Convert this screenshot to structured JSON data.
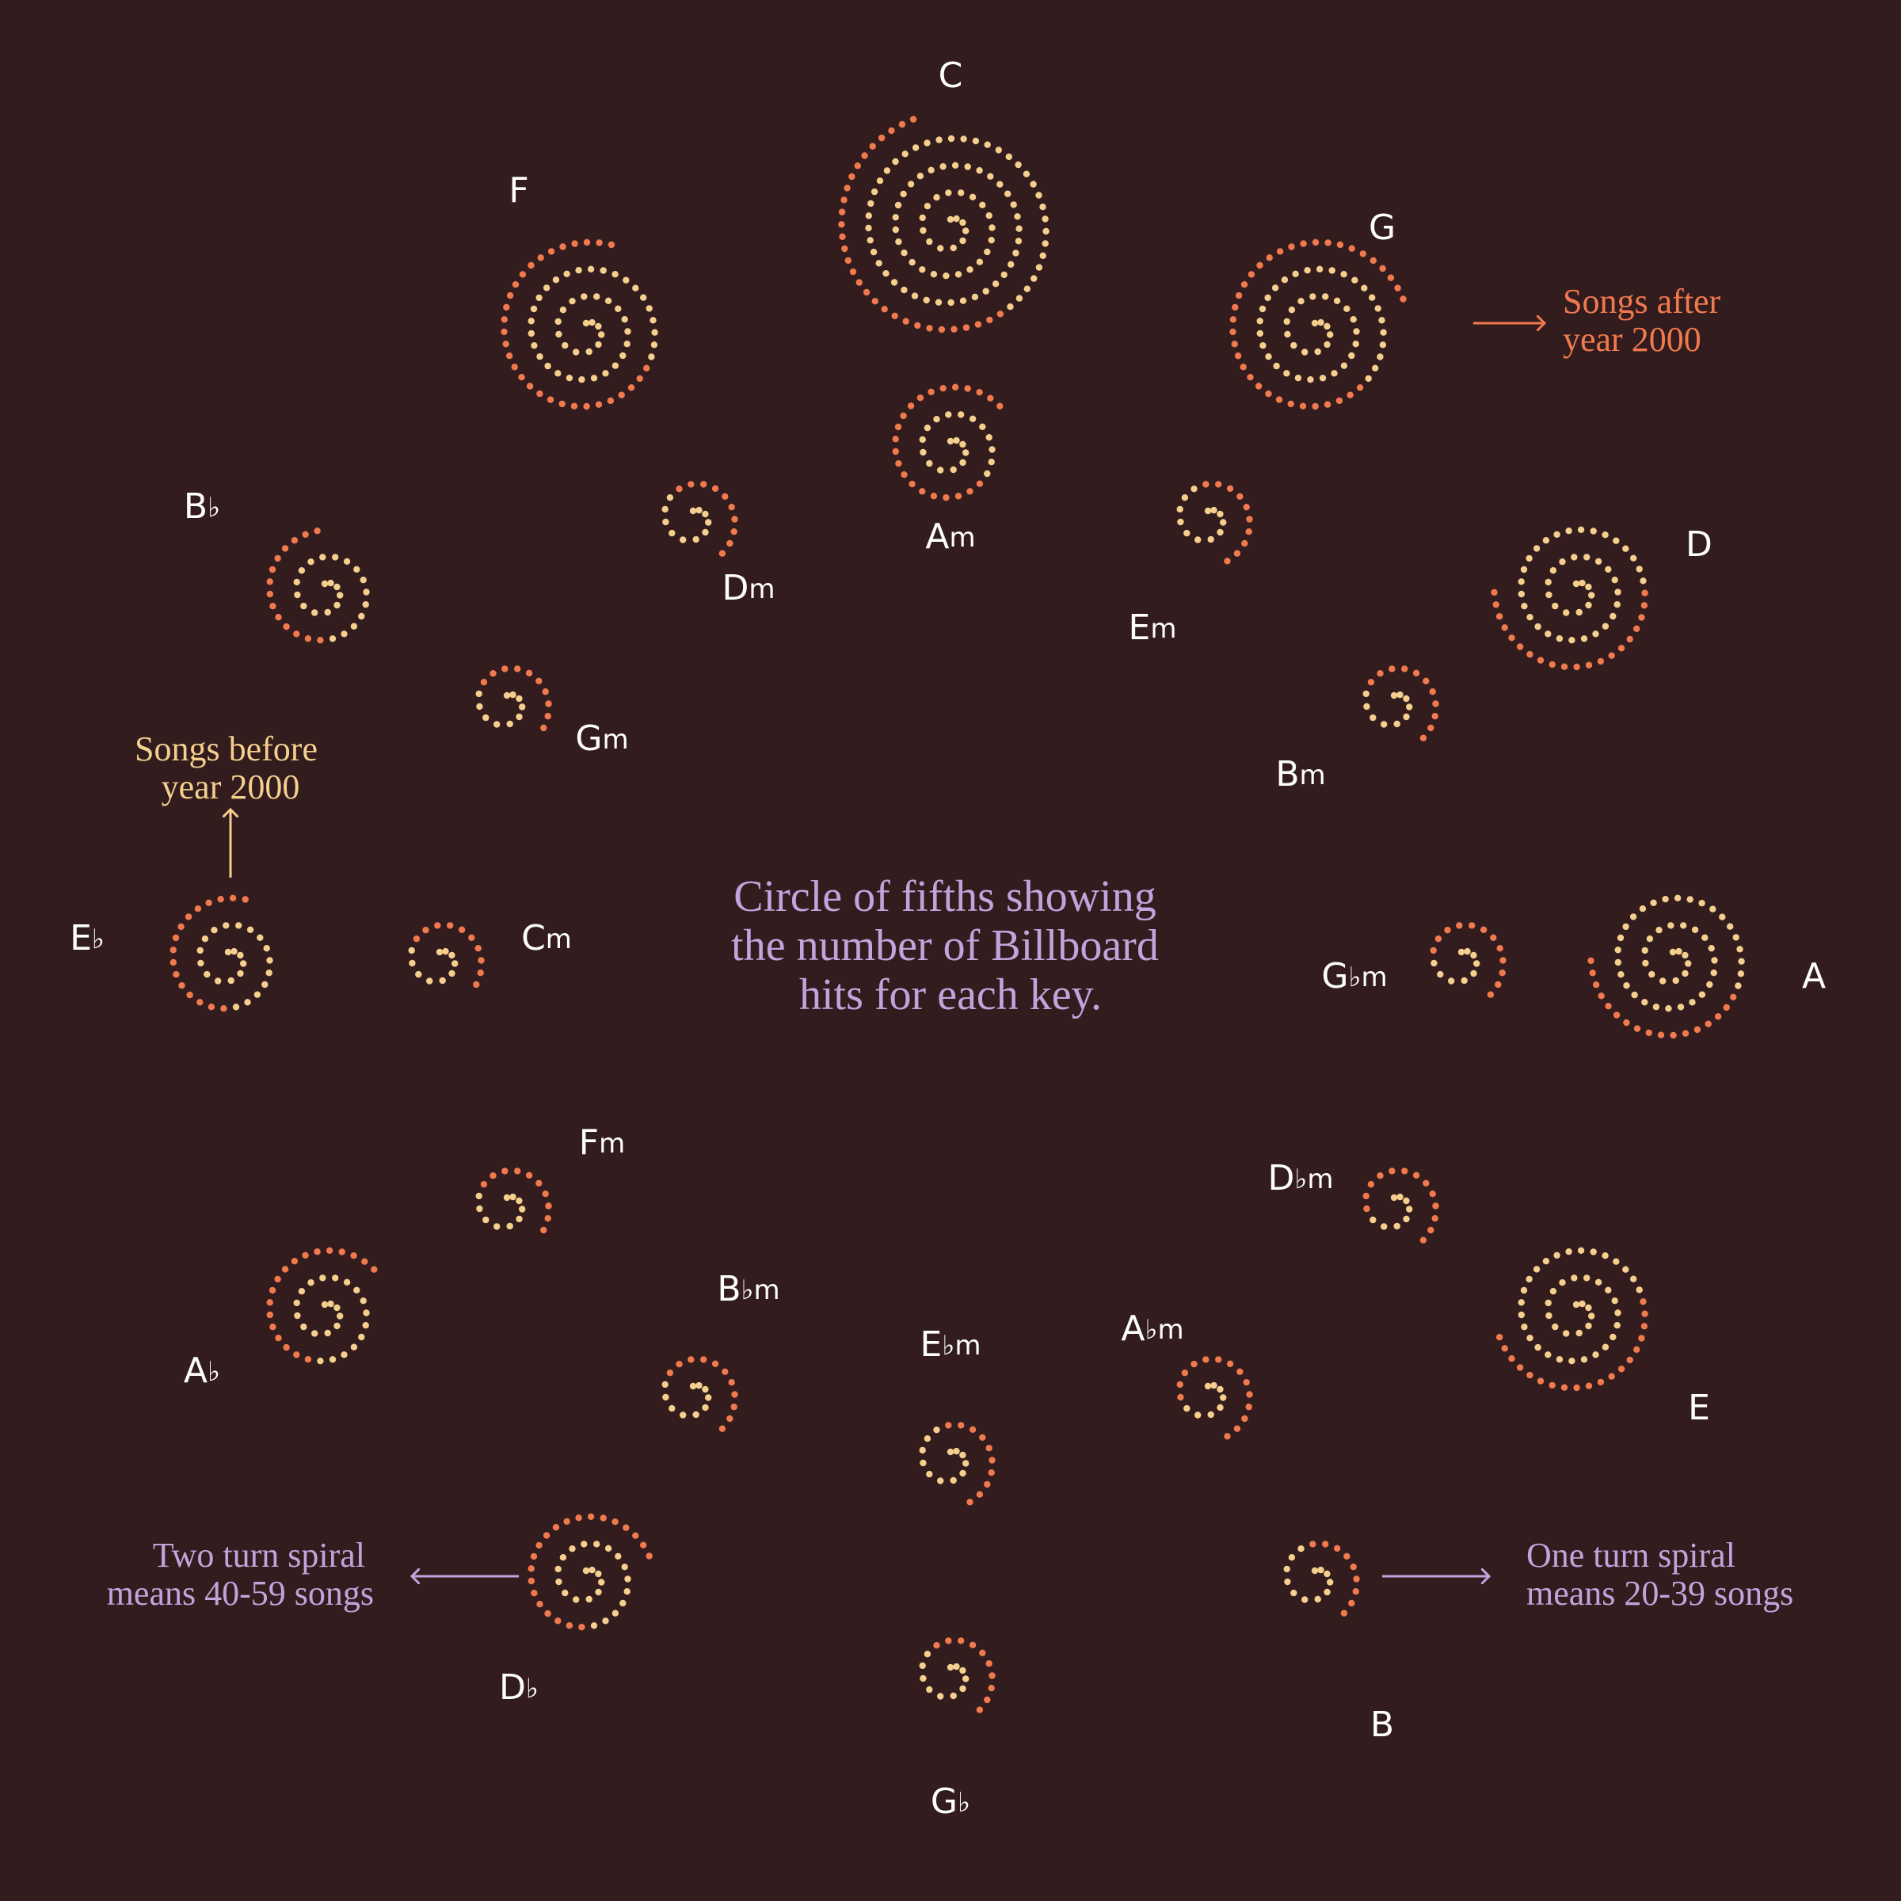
{
  "chart_data": {
    "type": "spiral",
    "title": [
      "Circle of fifths showing",
      "the number of Billboard",
      "hits for each key."
    ],
    "encoding_note": "one dot per song; dots ordered along the spiral, older songs inside",
    "series": [
      {
        "name": "Songs before year 2000",
        "color": "#f4cf8e"
      },
      {
        "name": "Songs after year 2000",
        "color": "#f07a4e"
      }
    ],
    "keys": [
      {
        "id": "C",
        "label": "C",
        "ring": "major",
        "before": 95,
        "after": 30
      },
      {
        "id": "G",
        "label": "G",
        "ring": "major",
        "before": 50,
        "after": 35
      },
      {
        "id": "D",
        "label": "D",
        "ring": "major",
        "before": 45,
        "after": 20
      },
      {
        "id": "A",
        "label": "A",
        "ring": "major",
        "before": 48,
        "after": 17
      },
      {
        "id": "E",
        "label": "E",
        "ring": "major",
        "before": 44,
        "after": 19
      },
      {
        "id": "B",
        "label": "B",
        "ring": "major",
        "before": 12,
        "after": 9
      },
      {
        "id": "Gb",
        "label": "G♭",
        "ring": "major",
        "before": 11,
        "after": 10
      },
      {
        "id": "Db",
        "label": "D♭",
        "ring": "major",
        "before": 23,
        "after": 21
      },
      {
        "id": "Ab",
        "label": "A♭",
        "ring": "major",
        "before": 24,
        "after": 18
      },
      {
        "id": "Eb",
        "label": "E♭",
        "ring": "major",
        "before": 23,
        "after": 16
      },
      {
        "id": "Bb",
        "label": "B♭",
        "ring": "major",
        "before": 23,
        "after": 14
      },
      {
        "id": "F",
        "label": "F",
        "ring": "major",
        "before": 48,
        "after": 30
      },
      {
        "id": "Am",
        "label": "Am",
        "ring": "minor",
        "before": 20,
        "after": 22
      },
      {
        "id": "Em",
        "label": "Em",
        "ring": "minor",
        "before": 12,
        "after": 10
      },
      {
        "id": "Bm",
        "label": "Bm",
        "ring": "minor",
        "before": 10,
        "after": 11
      },
      {
        "id": "Gbm",
        "label": "G♭m",
        "ring": "minor",
        "before": 9,
        "after": 12
      },
      {
        "id": "Dbm",
        "label": "D♭m",
        "ring": "minor",
        "before": 8,
        "after": 13
      },
      {
        "id": "Abm",
        "label": "A♭m",
        "ring": "minor",
        "before": 8,
        "after": 14
      },
      {
        "id": "Ebm",
        "label": "E♭m",
        "ring": "minor",
        "before": 12,
        "after": 10
      },
      {
        "id": "Bbm",
        "label": "B♭m",
        "ring": "minor",
        "before": 10,
        "after": 11
      },
      {
        "id": "Fm",
        "label": "Fm",
        "ring": "minor",
        "before": 10,
        "after": 10
      },
      {
        "id": "Cm",
        "label": "Cm",
        "ring": "minor",
        "before": 10,
        "after": 10
      },
      {
        "id": "Gm",
        "label": "Gm",
        "ring": "minor",
        "before": 10,
        "after": 10
      },
      {
        "id": "Dm",
        "label": "Dm",
        "ring": "minor",
        "before": 11,
        "after": 10
      }
    ]
  },
  "annotations": {
    "before": [
      "Songs before",
      "year 2000"
    ],
    "after": [
      "Songs after",
      "year 2000"
    ],
    "two_turn": [
      "Two turn spiral",
      "means 40-59 songs"
    ],
    "one_turn": [
      "One turn spiral",
      "means 20-39 songs"
    ]
  },
  "colors": {
    "background": "#331c1e",
    "before": "#f4cf8e",
    "after": "#f07a4e",
    "accent": "#c3a3dc",
    "label": "#ffffff"
  }
}
